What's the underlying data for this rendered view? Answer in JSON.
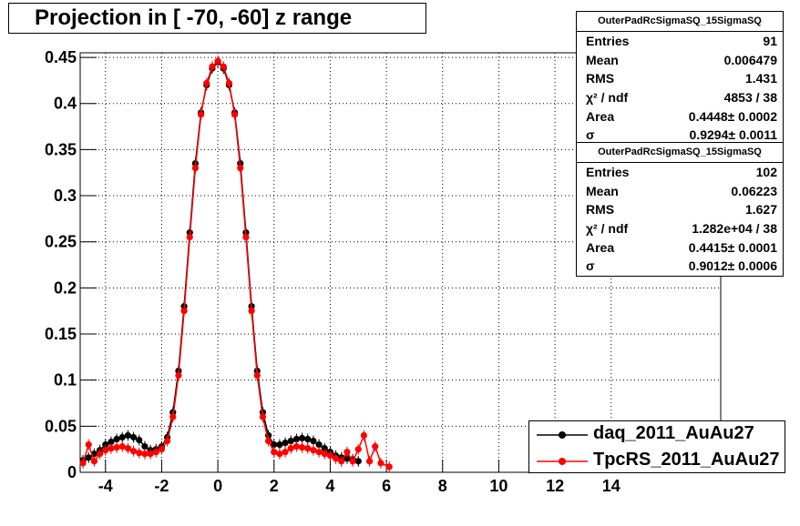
{
  "title": "Projection in [ -70, -60] z range",
  "stats_boxes": [
    {
      "name": "OuterPadRcSigmaSQ_15SigmaSQ",
      "rows": [
        {
          "label": "Entries",
          "value": "91"
        },
        {
          "label": "Mean",
          "value": "0.006479"
        },
        {
          "label": "RMS",
          "value": "1.431"
        },
        {
          "label": "χ² / ndf",
          "value": "4853 / 38"
        },
        {
          "label": "Area",
          "value": "0.4448± 0.0002"
        },
        {
          "label": "σ",
          "value": "0.9294± 0.0011"
        }
      ]
    },
    {
      "name": "OuterPadRcSigmaSQ_15SigmaSQ",
      "rows": [
        {
          "label": "Entries",
          "value": "102"
        },
        {
          "label": "Mean",
          "value": "0.06223"
        },
        {
          "label": "RMS",
          "value": "1.627"
        },
        {
          "label": "χ² / ndf",
          "value": "1.282e+04 / 38"
        },
        {
          "label": "Area",
          "value": "0.4415± 0.0001"
        },
        {
          "label": "σ",
          "value": "0.9012± 0.0006"
        }
      ]
    }
  ],
  "legend": [
    {
      "label": "daq_2011_AuAu27",
      "color": "#000000"
    },
    {
      "label": "TpcRS_2011_AuAu27",
      "color": "#ff0000"
    }
  ],
  "chart_data": {
    "type": "scatter",
    "title": "Projection in [ -70, -60] z range",
    "xlim": [
      -4.9,
      17.9
    ],
    "ylim": [
      0,
      0.455
    ],
    "grid": true,
    "legend_position": "bottom-right",
    "x_ticks": [
      -4,
      -2,
      0,
      2,
      4,
      6,
      8,
      10,
      12,
      14
    ],
    "y_ticks": [
      0,
      0.05,
      0.1,
      0.15,
      0.2,
      0.25,
      0.3,
      0.35,
      0.4,
      0.45
    ],
    "x_tick_labels": [
      "-4",
      "-2",
      "0",
      "2",
      "4",
      "6",
      "8",
      "10",
      "12",
      "14"
    ],
    "y_tick_labels": [
      "0",
      "0.05",
      "0.1",
      "0.15",
      "0.2",
      "0.25",
      "0.3",
      "0.35",
      "0.4",
      "0.45"
    ],
    "series": [
      {
        "name": "daq_2011_AuAu27",
        "color": "#000000",
        "x": [
          -4.8,
          -4.6,
          -4.4,
          -4.2,
          -4.0,
          -3.8,
          -3.6,
          -3.4,
          -3.2,
          -3.0,
          -2.8,
          -2.6,
          -2.4,
          -2.2,
          -2.0,
          -1.8,
          -1.6,
          -1.4,
          -1.2,
          -1.0,
          -0.8,
          -0.6,
          -0.4,
          -0.2,
          0.0,
          0.2,
          0.4,
          0.6,
          0.8,
          1.0,
          1.2,
          1.4,
          1.6,
          1.8,
          2.0,
          2.2,
          2.4,
          2.6,
          2.8,
          3.0,
          3.2,
          3.4,
          3.6,
          3.8,
          4.0,
          4.2,
          4.4,
          4.6,
          4.8,
          5.0
        ],
        "y": [
          0.013,
          0.016,
          0.02,
          0.024,
          0.03,
          0.033,
          0.036,
          0.038,
          0.04,
          0.038,
          0.035,
          0.028,
          0.024,
          0.025,
          0.028,
          0.038,
          0.065,
          0.11,
          0.18,
          0.26,
          0.335,
          0.39,
          0.42,
          0.438,
          0.445,
          0.438,
          0.42,
          0.39,
          0.335,
          0.26,
          0.18,
          0.11,
          0.065,
          0.04,
          0.03,
          0.03,
          0.032,
          0.034,
          0.036,
          0.037,
          0.036,
          0.034,
          0.03,
          0.026,
          0.022,
          0.018,
          0.016,
          0.015,
          0.014,
          0.012
        ]
      },
      {
        "name": "TpcRS_2011_AuAu27",
        "color": "#ff0000",
        "x": [
          -4.8,
          -4.6,
          -4.4,
          -4.2,
          -4.0,
          -3.8,
          -3.6,
          -3.4,
          -3.2,
          -3.0,
          -2.8,
          -2.6,
          -2.4,
          -2.2,
          -2.0,
          -1.8,
          -1.6,
          -1.4,
          -1.2,
          -1.0,
          -0.8,
          -0.6,
          -0.4,
          -0.2,
          0.0,
          0.2,
          0.4,
          0.6,
          0.8,
          1.0,
          1.2,
          1.4,
          1.6,
          1.8,
          2.0,
          2.2,
          2.4,
          2.6,
          2.8,
          3.0,
          3.2,
          3.4,
          3.6,
          3.8,
          4.0,
          4.2,
          4.4,
          4.6,
          4.8,
          5.0,
          5.2,
          5.4,
          5.6,
          5.8,
          6.1
        ],
        "y": [
          0.01,
          0.03,
          0.012,
          0.02,
          0.024,
          0.026,
          0.027,
          0.028,
          0.026,
          0.023,
          0.021,
          0.02,
          0.02,
          0.022,
          0.025,
          0.034,
          0.06,
          0.105,
          0.175,
          0.255,
          0.33,
          0.388,
          0.422,
          0.44,
          0.446,
          0.44,
          0.422,
          0.388,
          0.33,
          0.255,
          0.175,
          0.105,
          0.06,
          0.034,
          0.022,
          0.02,
          0.022,
          0.026,
          0.028,
          0.027,
          0.026,
          0.024,
          0.022,
          0.02,
          0.018,
          0.015,
          0.012,
          0.022,
          0.012,
          0.025,
          0.04,
          0.012,
          0.028,
          0.01,
          0.006
        ]
      }
    ]
  }
}
